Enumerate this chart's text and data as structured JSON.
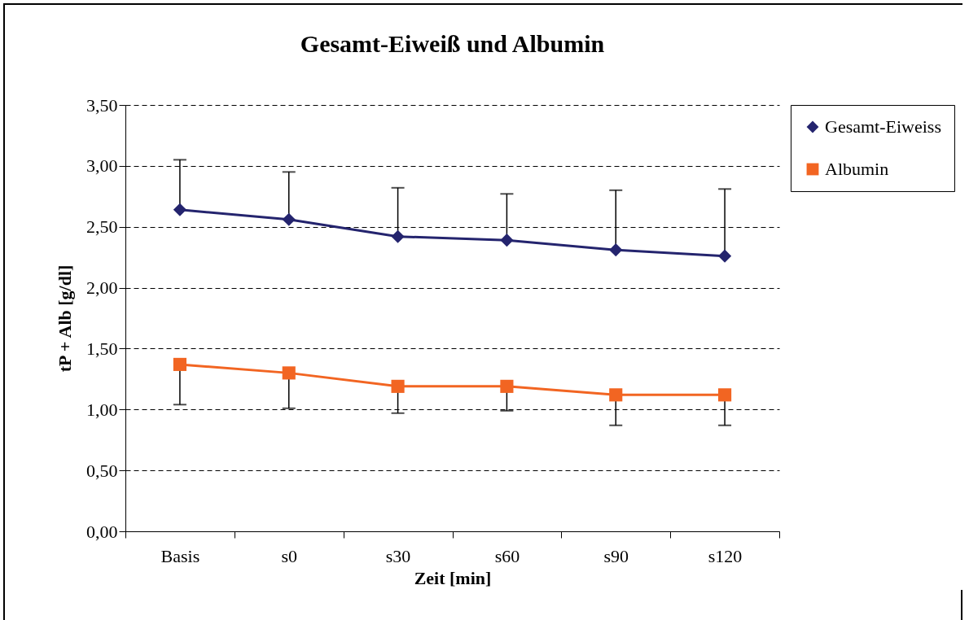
{
  "chart_data": {
    "type": "line",
    "title": "Gesamt-Eiweiß und Albumin",
    "xlabel": "Zeit [min]",
    "ylabel": "tP + Alb [g/dl]",
    "categories": [
      "Basis",
      "s0",
      "s30",
      "s60",
      "s90",
      "s120"
    ],
    "series": [
      {
        "name": "Gesamt-Eiweiss",
        "color": "#24246e",
        "marker": "diamond",
        "values": [
          2.64,
          2.56,
          2.42,
          2.39,
          2.31,
          2.26
        ],
        "errors": [
          [
            2.64,
            3.05
          ],
          [
            2.56,
            2.95
          ],
          [
            2.42,
            2.82
          ],
          [
            2.39,
            2.77
          ],
          [
            2.31,
            2.8
          ],
          [
            2.26,
            2.81
          ]
        ]
      },
      {
        "name": "Albumin",
        "color": "#f26522",
        "marker": "square",
        "values": [
          1.37,
          1.3,
          1.19,
          1.19,
          1.12,
          1.12
        ],
        "errors": [
          [
            1.04,
            1.37
          ],
          [
            1.01,
            1.3
          ],
          [
            0.97,
            1.19
          ],
          [
            0.99,
            1.19
          ],
          [
            0.87,
            1.12
          ],
          [
            0.87,
            1.12
          ]
        ]
      }
    ],
    "ylim": [
      0,
      3.5
    ],
    "yticks": [
      {
        "value": 0,
        "label": "0,00"
      },
      {
        "value": 0.5,
        "label": "0,50"
      },
      {
        "value": 1,
        "label": "1,00"
      },
      {
        "value": 1.5,
        "label": "1,50"
      },
      {
        "value": 2,
        "label": "2,00"
      },
      {
        "value": 2.5,
        "label": "2,50"
      },
      {
        "value": 3,
        "label": "3,00"
      },
      {
        "value": 3.5,
        "label": "3,50"
      }
    ],
    "grid": "y",
    "legend": "right",
    "line_style": "solid"
  }
}
